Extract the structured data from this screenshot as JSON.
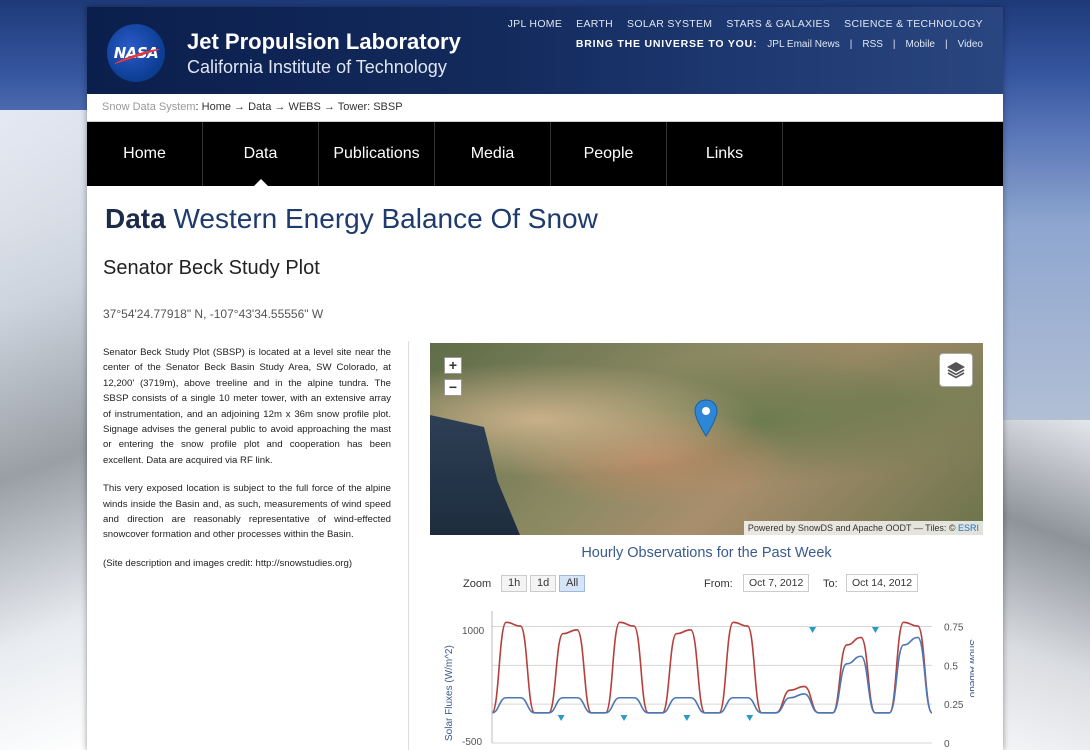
{
  "header": {
    "lab_title": "Jet Propulsion Laboratory",
    "lab_subtitle": "California Institute of Technology",
    "logo_text": "NASA",
    "top_links": [
      "JPL HOME",
      "EARTH",
      "SOLAR SYSTEM",
      "STARS & GALAXIES",
      "SCIENCE & TECHNOLOGY"
    ],
    "tagline": "BRING THE UNIVERSE TO YOU:",
    "sub_links": [
      "JPL Email News",
      "RSS",
      "Mobile",
      "Video"
    ]
  },
  "breadcrumb": {
    "system": "Snow Data System",
    "path": ": Home → Data → WEBS → Tower: SBSP"
  },
  "nav": {
    "items": [
      "Home",
      "Data",
      "Publications",
      "Media",
      "People",
      "Links"
    ],
    "active": "Data"
  },
  "page": {
    "title_bold": "Data",
    "title_rest": "Western Energy Balance Of Snow",
    "subtitle": "Senator Beck Study Plot",
    "coords": "37°54'24.77918\" N, -107°43'34.55556\" W"
  },
  "description": {
    "p1": "Senator Beck Study Plot (SBSP) is located at a level site near the center of the Senator Beck Basin Study Area, SW Colorado, at 12,200' (3719m), above treeline and in the alpine tundra. The SBSP consists of a single 10 meter tower, with an extensive array of instrumentation, and an adjoining 12m x 36m snow profile plot. Signage advises the general public to avoid approaching the mast or entering the snow profile plot and cooperation has been excellent. Data are acquired via RF link.",
    "p2": "This very exposed location is subject to the full force of the alpine winds inside the Basin and, as such, measurements of wind speed and direction are reasonably representative of wind-effected snowcover formation and other processes within the Basin.",
    "p3": "(Site description and images credit: http://snowstudies.org)"
  },
  "map": {
    "zoom_in": "+",
    "zoom_out": "−",
    "attribution": "Powered by SnowDS and Apache OODT — Tiles: ©",
    "attribution_link": "ESRI"
  },
  "chart_controls": {
    "zoom_label": "Zoom",
    "ranges": [
      "1h",
      "1d",
      "All"
    ],
    "selected_range": "All",
    "from_label": "From:",
    "from_value": "Oct 7, 2012",
    "to_label": "To:",
    "to_value": "Oct 14, 2012"
  },
  "chart_data": {
    "type": "line",
    "title": "Hourly Observations for the Past Week",
    "ylabel": "Solar Fluxes (W/m^2)",
    "y2label": "Snow Albedo",
    "ylim": [
      -500,
      1250
    ],
    "y_ticks_left": [
      "-500",
      "1000"
    ],
    "y2lim": [
      0,
      0.85
    ],
    "y2_ticks": [
      "0",
      "0.25",
      "0.5",
      "0.75"
    ],
    "x_range": [
      "Oct 7, 2012",
      "Oct 14, 2012"
    ],
    "series": [
      {
        "color": "#b5403b",
        "values": [
          -100,
          1100,
          1050,
          -100,
          -100,
          950,
          1000,
          -100,
          -100,
          1100,
          1050,
          -100,
          -100,
          950,
          1000,
          -100,
          -100,
          1100,
          1050,
          -100,
          -100,
          200,
          250,
          -100,
          -100,
          800,
          900,
          -100,
          -100,
          1100,
          1050,
          -100
        ]
      },
      {
        "color": "#4b78b4",
        "values": [
          -100,
          100,
          100,
          -100,
          -100,
          100,
          100,
          -100,
          -100,
          100,
          100,
          -100,
          -100,
          100,
          100,
          -100,
          -100,
          100,
          100,
          -100,
          -100,
          100,
          150,
          -100,
          -100,
          550,
          650,
          -100,
          -100,
          800,
          900,
          -100
        ]
      }
    ],
    "flag_markers": {
      "color": "#2b9ac6",
      "top_days": [
        5.1,
        6.1
      ],
      "bottom_days": [
        1.1,
        2.1,
        3.1,
        4.1
      ]
    }
  }
}
